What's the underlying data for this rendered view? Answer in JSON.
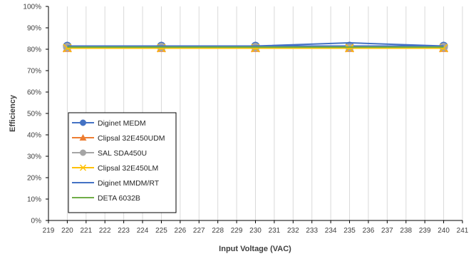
{
  "chart_data": {
    "type": "line",
    "xlabel": "Input Voltage (VAC)",
    "ylabel": "Efficiency",
    "xlim": [
      219,
      241
    ],
    "ylim": [
      0,
      100
    ],
    "x_ticks": [
      "219",
      "220",
      "221",
      "222",
      "223",
      "224",
      "225",
      "226",
      "227",
      "228",
      "229",
      "230",
      "231",
      "232",
      "233",
      "234",
      "235",
      "236",
      "237",
      "238",
      "239",
      "240",
      "241"
    ],
    "y_ticks": [
      "0%",
      "10%",
      "20%",
      "30%",
      "40%",
      "50%",
      "60%",
      "70%",
      "80%",
      "90%",
      "100%"
    ],
    "grid": "vertical",
    "legend_position": "lower-left",
    "x": [
      220,
      225,
      230,
      235,
      240
    ],
    "series": [
      {
        "name": "Diginet MEDM",
        "values": [
          81.5,
          81.5,
          81.5,
          81.5,
          81.5
        ],
        "color": "#4472C4",
        "marker": "circle"
      },
      {
        "name": "Clipsal 32E450UDM",
        "values": [
          80.5,
          80.5,
          80.5,
          80.5,
          80.5
        ],
        "color": "#ED7D31",
        "marker": "triangle"
      },
      {
        "name": "SAL SDA450U",
        "values": [
          81.0,
          81.0,
          81.0,
          81.0,
          81.0
        ],
        "color": "#A5A5A5",
        "marker": "circle"
      },
      {
        "name": "Clipsal 32E450LM",
        "values": [
          80.5,
          80.5,
          80.5,
          80.5,
          80.5
        ],
        "color": "#FFC000",
        "marker": "x"
      },
      {
        "name": "Diginet MMDM/RT",
        "values": [
          81.5,
          81.5,
          81.5,
          83.0,
          81.5
        ],
        "color": "#4472C4",
        "marker": "none"
      },
      {
        "name": "DETA 6032B",
        "values": [
          81.0,
          81.0,
          81.0,
          81.0,
          81.0
        ],
        "color": "#70AD47",
        "marker": "none"
      }
    ]
  }
}
